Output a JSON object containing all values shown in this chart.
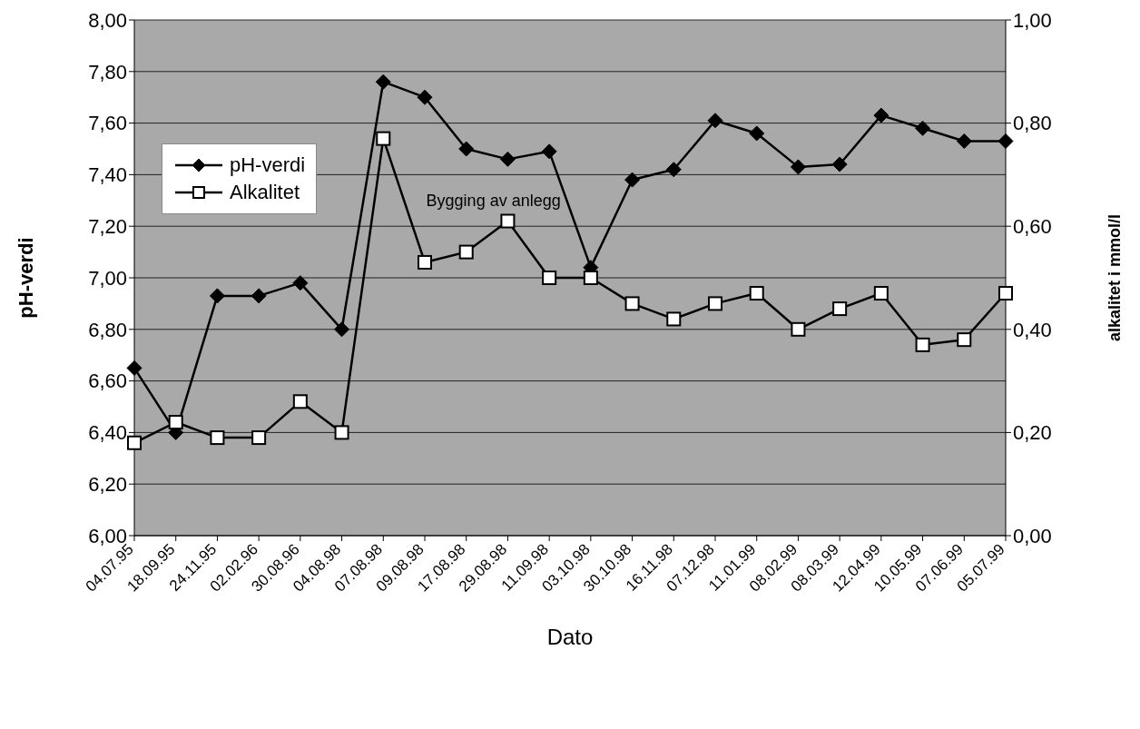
{
  "chart_data": {
    "type": "line",
    "xlabel": "Dato",
    "ylabel": "pH-verdi",
    "y2label": "alkalitet i mmol/l",
    "categories": [
      "04.07.95",
      "18.09.95",
      "24.11.95",
      "02.02.96",
      "30.08.96",
      "04.08.98",
      "07.08.98",
      "09.08.98",
      "17.08.98",
      "29.08.98",
      "11.09.98",
      "03.10.98",
      "30.10.98",
      "16.11.98",
      "07.12.98",
      "11.01.99",
      "08.02.99",
      "08.03.99",
      "12.04.99",
      "10.05.99",
      "07.06.99",
      "05.07.99"
    ],
    "series": [
      {
        "name": "pH-verdi",
        "color": "#000000",
        "marker": "diamond",
        "values": [
          6.65,
          6.4,
          6.93,
          6.93,
          6.98,
          6.8,
          7.76,
          7.7,
          7.5,
          7.46,
          7.49,
          7.04,
          7.38,
          7.42,
          7.61,
          7.56,
          7.43,
          7.44,
          7.63,
          7.58,
          7.53,
          7.53
        ]
      },
      {
        "name": "Alkalitet",
        "color": "#000000",
        "marker": "square",
        "axis": "y2",
        "values": [
          0.18,
          0.22,
          0.19,
          0.19,
          0.26,
          0.2,
          0.77,
          0.53,
          0.55,
          0.61,
          0.5,
          0.5,
          0.45,
          0.42,
          0.45,
          0.47,
          0.4,
          0.44,
          0.47,
          0.37,
          0.38,
          0.47
        ]
      }
    ],
    "ylim": [
      6,
      8
    ],
    "yticks": [
      {
        "value": 6,
        "label": "6,00"
      },
      {
        "value": 6.2,
        "label": "6,20"
      },
      {
        "value": 6.4,
        "label": "6,40"
      },
      {
        "value": 6.6,
        "label": "6,60"
      },
      {
        "value": 6.8,
        "label": "6,80"
      },
      {
        "value": 7,
        "label": "7,00"
      },
      {
        "value": 7.2,
        "label": "7,20"
      },
      {
        "value": 7.4,
        "label": "7,40"
      },
      {
        "value": 7.6,
        "label": "7,60"
      },
      {
        "value": 7.8,
        "label": "7,80"
      },
      {
        "value": 8,
        "label": "8,00"
      }
    ],
    "y2lim": [
      0,
      1
    ],
    "y2ticks": [
      {
        "value": 0,
        "label": "0,00"
      },
      {
        "value": 0.2,
        "label": "0,20"
      },
      {
        "value": 0.4,
        "label": "0,40"
      },
      {
        "value": 0.6,
        "label": "0,60"
      },
      {
        "value": 0.8,
        "label": "0,80"
      },
      {
        "value": 1,
        "label": "1,00"
      }
    ],
    "grid": "y",
    "legend": "left",
    "line_style": "solid",
    "annotations": [
      "Bygging av anlegg"
    ]
  }
}
